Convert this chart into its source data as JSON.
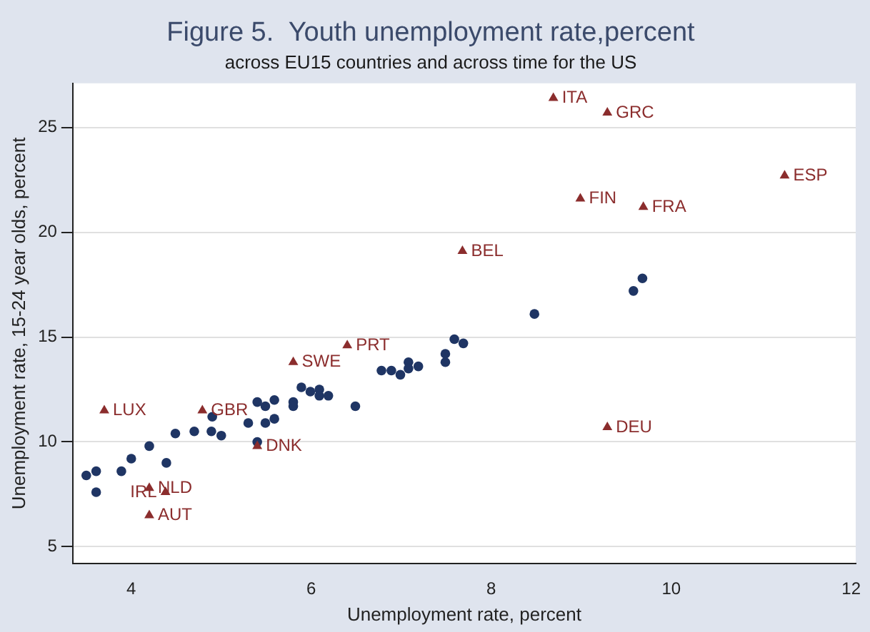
{
  "chart_data": {
    "type": "scatter",
    "title": "Figure 5.  Youth unemployment rate,percent",
    "subtitle": "across EU15 countries and across time for the US",
    "xlabel": "Unemployment rate, percent",
    "ylabel": "Unemployment rate, 15-24 year olds, percent",
    "xlim": [
      3.35,
      12.05
    ],
    "xticks": [
      4,
      6,
      8,
      10,
      12
    ],
    "ylim": [
      4.2,
      27.1
    ],
    "yticks": [
      5,
      10,
      15,
      20,
      25
    ],
    "grid": "y",
    "legend": false,
    "series": [
      {
        "color": "#8b2d2d",
        "marker": "triangle",
        "x": [
          3.7,
          4.79,
          5.8,
          6.4,
          5.4,
          4.2,
          4.38,
          4.2,
          7.68,
          8.69,
          9.29,
          11.26,
          8.99,
          9.69,
          9.29
        ],
        "values": [
          11.5,
          11.5,
          13.8,
          14.6,
          9.8,
          7.8,
          7.6,
          6.5,
          19.1,
          26.4,
          25.7,
          22.7,
          21.6,
          21.2,
          10.7
        ]
      },
      {
        "color": "#1f3564",
        "marker": "circle",
        "x": [
          3.5,
          3.61,
          3.61,
          3.89,
          4.0,
          4.2,
          4.39,
          4.49,
          4.7,
          4.89,
          5.0,
          4.9,
          5.3,
          5.4,
          5.49,
          5.59,
          5.49,
          5.59,
          5.4,
          5.8,
          5.8,
          5.89,
          5.99,
          6.09,
          6.09,
          6.19,
          6.49,
          6.78,
          6.89,
          6.99,
          7.08,
          7.08,
          7.19,
          7.49,
          7.49,
          7.59,
          7.69,
          8.48,
          9.58,
          9.68
        ],
        "values": [
          8.4,
          8.6,
          7.6,
          8.6,
          9.2,
          9.8,
          9.0,
          10.4,
          10.5,
          10.5,
          10.3,
          11.2,
          10.9,
          11.9,
          11.7,
          12.0,
          10.9,
          11.1,
          10.0,
          11.9,
          11.7,
          12.6,
          12.4,
          12.5,
          12.2,
          12.2,
          11.7,
          13.4,
          13.4,
          13.2,
          13.8,
          13.5,
          13.6,
          14.2,
          13.8,
          14.9,
          14.7,
          16.1,
          17.2,
          17.8
        ]
      }
    ],
    "annotations": [
      {
        "text": "LUX",
        "x": 3.7,
        "y": 11.5
      },
      {
        "text": "GBR",
        "x": 4.79,
        "y": 11.5
      },
      {
        "text": "SWE",
        "x": 5.8,
        "y": 13.8
      },
      {
        "text": "PRT",
        "x": 6.4,
        "y": 14.6
      },
      {
        "text": "DNK",
        "x": 5.4,
        "y": 9.8
      },
      {
        "text": "NLD",
        "x": 4.2,
        "y": 7.8
      },
      {
        "text": "IRL",
        "x": 4.38,
        "y": 7.6
      },
      {
        "text": "AUT",
        "x": 4.2,
        "y": 6.5
      },
      {
        "text": "BEL",
        "x": 7.68,
        "y": 19.1
      },
      {
        "text": "ITA",
        "x": 8.69,
        "y": 26.4
      },
      {
        "text": "GRC",
        "x": 9.29,
        "y": 25.7
      },
      {
        "text": "ESP",
        "x": 11.26,
        "y": 22.7
      },
      {
        "text": "FIN",
        "x": 8.99,
        "y": 21.6
      },
      {
        "text": "FRA",
        "x": 9.69,
        "y": 21.2
      },
      {
        "text": "DEU",
        "x": 9.29,
        "y": 10.7
      }
    ]
  }
}
